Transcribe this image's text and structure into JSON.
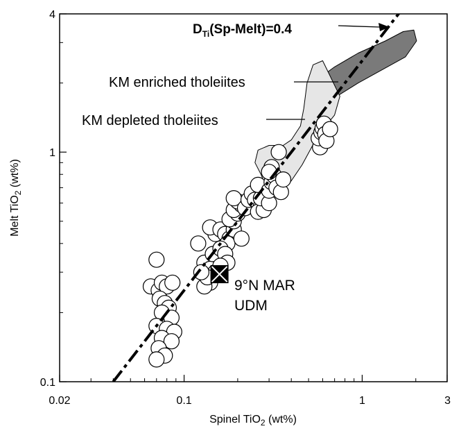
{
  "chart_data": {
    "type": "scatter",
    "xscale": "log",
    "yscale": "log",
    "xlim": [
      0.02,
      3
    ],
    "ylim": [
      0.1,
      4
    ],
    "x_ticks": [
      {
        "value": 0.02,
        "label": "0.02"
      },
      {
        "value": 0.1,
        "label": "0.1"
      },
      {
        "value": 1,
        "label": "1"
      },
      {
        "value": 3,
        "label": "3"
      }
    ],
    "y_ticks": [
      {
        "value": 0.1,
        "label": "0.1"
      },
      {
        "value": 1,
        "label": "1"
      },
      {
        "value": 4,
        "label": "4"
      }
    ],
    "xlabel": "Spinel TiO",
    "xlabel_sub": "2",
    "xlabel_unit": " (wt%)",
    "ylabel": "Melt TiO",
    "ylabel_sub": "2",
    "ylabel_unit": " (wt%)",
    "grid": false,
    "line": {
      "label_main": "D",
      "label_sub": "Ti",
      "label_rest": "(Sp-Melt)=0.4",
      "slope_ratio": 0.4,
      "x_range": [
        0.04,
        1.7
      ]
    },
    "regions": [
      {
        "name": "KM enriched tholeiites",
        "label": "KM enriched tholeiites",
        "fill": "#7a7a7a",
        "polygon": [
          [
            0.52,
            1.55
          ],
          [
            0.5,
            1.75
          ],
          [
            0.55,
            2.05
          ],
          [
            0.7,
            2.35
          ],
          [
            0.95,
            2.7
          ],
          [
            1.35,
            3.05
          ],
          [
            1.7,
            3.35
          ],
          [
            1.95,
            3.4
          ],
          [
            2.02,
            3.05
          ],
          [
            1.75,
            2.6
          ],
          [
            1.25,
            2.25
          ],
          [
            0.95,
            2.0
          ],
          [
            0.72,
            1.75
          ],
          [
            0.6,
            1.58
          ]
        ]
      },
      {
        "name": "KM depleted tholeiites",
        "label": "KM depleted tholeiites",
        "fill": "#e6e6e6",
        "polygon": [
          [
            0.29,
            0.7
          ],
          [
            0.27,
            0.8
          ],
          [
            0.25,
            0.9
          ],
          [
            0.26,
            1.02
          ],
          [
            0.3,
            1.07
          ],
          [
            0.36,
            1.07
          ],
          [
            0.4,
            1.13
          ],
          [
            0.45,
            1.3
          ],
          [
            0.47,
            1.55
          ],
          [
            0.49,
            2.0
          ],
          [
            0.53,
            2.4
          ],
          [
            0.6,
            2.5
          ],
          [
            0.65,
            2.2
          ],
          [
            0.75,
            1.75
          ],
          [
            0.7,
            1.45
          ],
          [
            0.6,
            1.25
          ],
          [
            0.52,
            1.05
          ],
          [
            0.46,
            0.88
          ],
          [
            0.4,
            0.75
          ],
          [
            0.35,
            0.68
          ]
        ]
      }
    ],
    "series": [
      {
        "points": [
          [
            0.07,
            0.34
          ],
          [
            0.065,
            0.26
          ],
          [
            0.072,
            0.25
          ],
          [
            0.075,
            0.27
          ],
          [
            0.08,
            0.26
          ],
          [
            0.086,
            0.27
          ],
          [
            0.073,
            0.23
          ],
          [
            0.078,
            0.22
          ],
          [
            0.082,
            0.21
          ],
          [
            0.075,
            0.2
          ],
          [
            0.085,
            0.19
          ],
          [
            0.07,
            0.175
          ],
          [
            0.08,
            0.17
          ],
          [
            0.088,
            0.165
          ],
          [
            0.075,
            0.155
          ],
          [
            0.085,
            0.15
          ],
          [
            0.072,
            0.14
          ],
          [
            0.078,
            0.13
          ],
          [
            0.07,
            0.125
          ],
          [
            0.12,
            0.4
          ],
          [
            0.13,
            0.33
          ],
          [
            0.14,
            0.31
          ],
          [
            0.15,
            0.3
          ],
          [
            0.14,
            0.27
          ],
          [
            0.13,
            0.26
          ],
          [
            0.135,
            0.285
          ],
          [
            0.125,
            0.3
          ],
          [
            0.145,
            0.36
          ],
          [
            0.15,
            0.44
          ],
          [
            0.14,
            0.47
          ],
          [
            0.16,
            0.46
          ],
          [
            0.17,
            0.44
          ],
          [
            0.18,
            0.42
          ],
          [
            0.175,
            0.4
          ],
          [
            0.19,
            0.46
          ],
          [
            0.16,
            0.38
          ],
          [
            0.17,
            0.36
          ],
          [
            0.175,
            0.33
          ],
          [
            0.16,
            0.32
          ],
          [
            0.21,
            0.42
          ],
          [
            0.19,
            0.5
          ],
          [
            0.18,
            0.51
          ],
          [
            0.2,
            0.54
          ],
          [
            0.19,
            0.56
          ],
          [
            0.21,
            0.59
          ],
          [
            0.2,
            0.61
          ],
          [
            0.19,
            0.63
          ],
          [
            0.22,
            0.57
          ],
          [
            0.23,
            0.62
          ],
          [
            0.24,
            0.66
          ],
          [
            0.25,
            0.62
          ],
          [
            0.27,
            0.58
          ],
          [
            0.26,
            0.55
          ],
          [
            0.28,
            0.56
          ],
          [
            0.27,
            0.63
          ],
          [
            0.26,
            0.72
          ],
          [
            0.3,
            0.6
          ],
          [
            0.3,
            0.68
          ],
          [
            0.31,
            0.74
          ],
          [
            0.32,
            0.79
          ],
          [
            0.31,
            0.86
          ],
          [
            0.3,
            0.82
          ],
          [
            0.33,
            0.7
          ],
          [
            0.35,
            0.67
          ],
          [
            0.36,
            0.76
          ],
          [
            0.34,
            1.0
          ],
          [
            0.58,
            1.05
          ],
          [
            0.57,
            1.15
          ],
          [
            0.59,
            1.22
          ],
          [
            0.6,
            1.27
          ],
          [
            0.61,
            1.33
          ],
          [
            0.62,
            1.2
          ],
          [
            0.63,
            1.12
          ],
          [
            0.66,
            1.26
          ]
        ]
      }
    ],
    "highlight": {
      "name": "9°N MAR UDM",
      "label_line1": "9°N MAR",
      "label_line2": "UDM",
      "x": 0.158,
      "y": 0.294
    },
    "annotations": [
      {
        "text": "KM enriched tholeiites",
        "region": "KM enriched tholeiites"
      },
      {
        "text": "KM depleted tholeiites",
        "region": "KM depleted tholeiites"
      }
    ]
  }
}
